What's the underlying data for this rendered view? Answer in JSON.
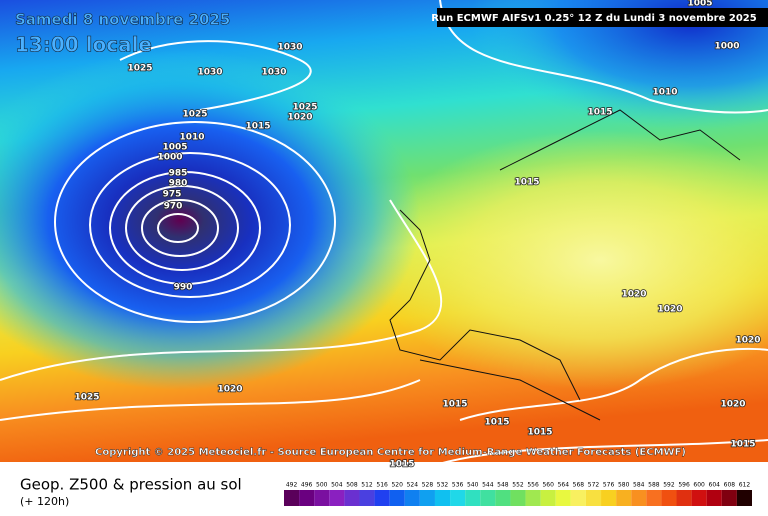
{
  "header": {
    "date": "Samedi 8 novembre 2025",
    "time": "13:00 locale",
    "run": "Run ECMWF AIFSv1 0.25° 12 Z du Lundi 3 novembre 2025"
  },
  "isobar_labels": [
    1025,
    1030,
    1030,
    1030,
    1025,
    1015,
    1025,
    1020,
    1010,
    1005,
    1000,
    985,
    980,
    975,
    970,
    990,
    1020,
    1025,
    1015,
    1015,
    1010,
    1005,
    1000,
    1020,
    1020,
    1020,
    1020,
    1015,
    1015,
    1015,
    1015,
    1015
  ],
  "copyright": "Copyright © 2025 Meteociel.fr - Source European Centre for Medium-Range Weather Forecasts (ECMWF)",
  "footer": {
    "title": "Geop. Z500 & pression au sol",
    "lead": "(+ 120h)"
  },
  "scale": {
    "values": [
      492,
      496,
      500,
      504,
      508,
      512,
      516,
      520,
      524,
      528,
      532,
      536,
      540,
      544,
      548,
      552,
      556,
      560,
      564,
      568,
      572,
      576,
      580,
      584,
      588,
      592,
      596,
      600,
      604,
      608,
      612
    ]
  }
}
